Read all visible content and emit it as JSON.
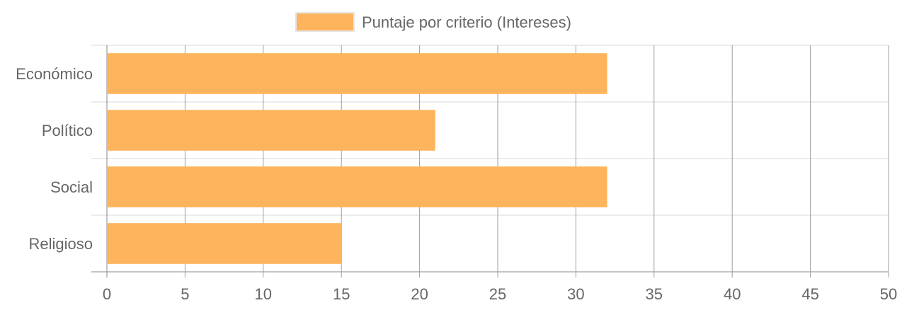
{
  "chart_data": {
    "type": "bar",
    "orientation": "horizontal",
    "categories": [
      "Económico",
      "Político",
      "Social",
      "Religioso"
    ],
    "series": [
      {
        "name": "Puntaje por criterio (Intereses)",
        "values": [
          32,
          21,
          32,
          15
        ]
      }
    ],
    "xlim": [
      0,
      50
    ],
    "xticks": [
      0,
      5,
      10,
      15,
      20,
      25,
      30,
      35,
      40,
      45,
      50
    ],
    "grid": true,
    "legend_position": "top-center",
    "colors": {
      "bar": "#FDB45C",
      "grid": "#d9d9d9",
      "vgrid": "#9e9e9e",
      "text": "#666666"
    }
  }
}
